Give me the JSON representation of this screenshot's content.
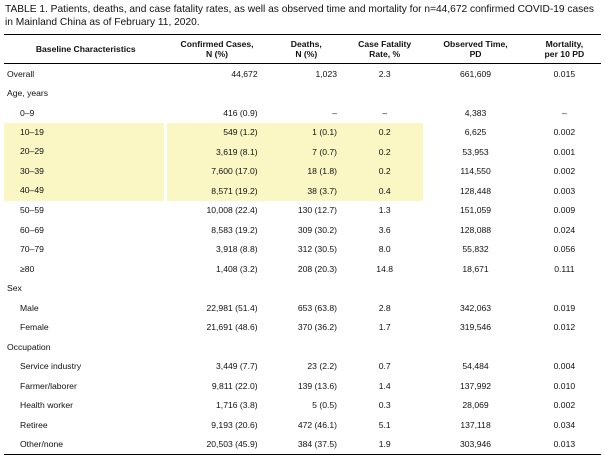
{
  "caption": "TABLE 1. Patients, deaths, and case fatality rates, as well as observed time and mortality for n=44,672 confirmed COVID-19 cases in Mainland China as of February 11, 2020.",
  "headers": {
    "c0": "Baseline Characteristics",
    "c1a": "Confirmed Cases,",
    "c1b": "N (%)",
    "c2a": "Deaths,",
    "c2b": "N (%)",
    "c3a": "Case Fatality",
    "c3b": "Rate, %",
    "c4a": "Observed Time,",
    "c4b": "PD",
    "c5a": "Mortality,",
    "c5b": "per 10 PD"
  },
  "rows": [
    {
      "label": "Overall",
      "cases": "44,672",
      "deaths": "1,023",
      "cfr": "2.3",
      "time": "661,609",
      "mort": "0.015"
    },
    {
      "label": "Age, years",
      "cases": "",
      "deaths": "",
      "cfr": "",
      "time": "",
      "mort": ""
    },
    {
      "label": "0–9",
      "cases": "416 (0.9)",
      "deaths": "–",
      "cfr": "–",
      "time": "4,383",
      "mort": "–"
    },
    {
      "label": "10–19",
      "cases": "549 (1.2)",
      "deaths": "1 (0.1)",
      "cfr": "0.2",
      "time": "6,625",
      "mort": "0.002"
    },
    {
      "label": "20–29",
      "cases": "3,619 (8.1)",
      "deaths": "7 (0.7)",
      "cfr": "0.2",
      "time": "53,953",
      "mort": "0.001"
    },
    {
      "label": "30–39",
      "cases": "7,600 (17.0)",
      "deaths": "18 (1.8)",
      "cfr": "0.2",
      "time": "114,550",
      "mort": "0.002"
    },
    {
      "label": "40–49",
      "cases": "8,571 (19.2)",
      "deaths": "38 (3.7)",
      "cfr": "0.4",
      "time": "128,448",
      "mort": "0.003"
    },
    {
      "label": "50–59",
      "cases": "10,008 (22.4)",
      "deaths": "130 (12.7)",
      "cfr": "1.3",
      "time": "151,059",
      "mort": "0.009"
    },
    {
      "label": "60–69",
      "cases": "8,583 (19.2)",
      "deaths": "309 (30.2)",
      "cfr": "3.6",
      "time": "128,088",
      "mort": "0.024"
    },
    {
      "label": "70–79",
      "cases": "3,918 (8.8)",
      "deaths": "312 (30.5)",
      "cfr": "8.0",
      "time": "55,832",
      "mort": "0.056"
    },
    {
      "label": "≥80",
      "cases": "1,408 (3.2)",
      "deaths": "208 (20.3)",
      "cfr": "14.8",
      "time": "18,671",
      "mort": "0.111"
    },
    {
      "label": "Sex",
      "cases": "",
      "deaths": "",
      "cfr": "",
      "time": "",
      "mort": ""
    },
    {
      "label": "Male",
      "cases": "22,981 (51.4)",
      "deaths": "653 (63.8)",
      "cfr": "2.8",
      "time": "342,063",
      "mort": "0.019"
    },
    {
      "label": "Female",
      "cases": "21,691 (48.6)",
      "deaths": "370 (36.2)",
      "cfr": "1.7",
      "time": "319,546",
      "mort": "0.012"
    },
    {
      "label": "Occupation",
      "cases": "",
      "deaths": "",
      "cfr": "",
      "time": "",
      "mort": ""
    },
    {
      "label": "Service industry",
      "cases": "3,449 (7.7)",
      "deaths": "23 (2.2)",
      "cfr": "0.7",
      "time": "54,484",
      "mort": "0.004"
    },
    {
      "label": "Farmer/laborer",
      "cases": "9,811 (22.0)",
      "deaths": "139 (13.6)",
      "cfr": "1.4",
      "time": "137,992",
      "mort": "0.010"
    },
    {
      "label": "Health worker",
      "cases": "1,716 (3.8)",
      "deaths": "5 (0.5)",
      "cfr": "0.3",
      "time": "28,069",
      "mort": "0.002"
    },
    {
      "label": "Retiree",
      "cases": "9,193 (20.6)",
      "deaths": "472 (46.1)",
      "cfr": "5.1",
      "time": "137,118",
      "mort": "0.034"
    },
    {
      "label": "Other/none",
      "cases": "20,503 (45.9)",
      "deaths": "384 (37.5)",
      "cfr": "1.9",
      "time": "303,946",
      "mort": "0.013"
    }
  ]
}
